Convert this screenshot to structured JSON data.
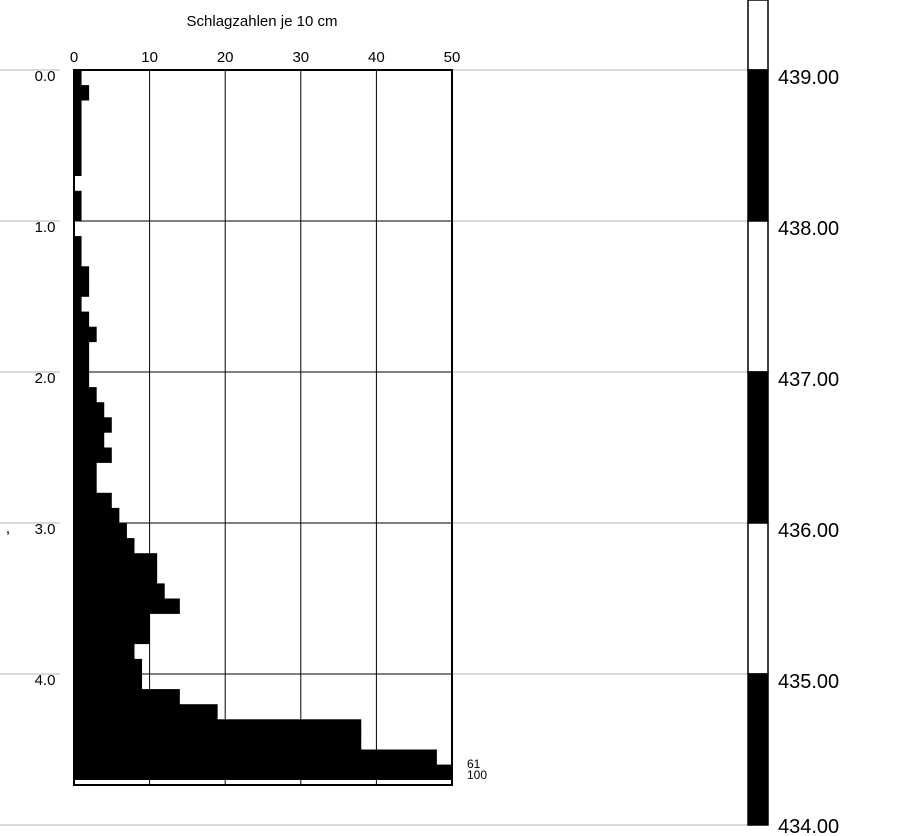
{
  "chart_data": {
    "type": "bar",
    "orientation": "horizontal",
    "title": "Schlagzahlen je 10 cm",
    "xlim": [
      0,
      50
    ],
    "x_ticks": [
      0,
      10,
      20,
      30,
      40,
      50
    ],
    "ylim": [
      0.0,
      4.7
    ],
    "y_ticks": [
      "0.0",
      "1.0",
      "2.0",
      "3.0",
      "4.0"
    ],
    "grid": true,
    "bin_size": 0.1,
    "depth_start": [
      0.0,
      0.1,
      0.2,
      0.3,
      0.4,
      0.5,
      0.6,
      0.7,
      0.8,
      0.9,
      1.0,
      1.1,
      1.2,
      1.3,
      1.4,
      1.5,
      1.6,
      1.7,
      1.8,
      1.9,
      2.0,
      2.1,
      2.2,
      2.3,
      2.4,
      2.5,
      2.6,
      2.7,
      2.8,
      2.9,
      3.0,
      3.1,
      3.2,
      3.3,
      3.4,
      3.5,
      3.6,
      3.7,
      3.8,
      3.9,
      4.0,
      4.1,
      4.2,
      4.3,
      4.4,
      4.5,
      4.6
    ],
    "values": [
      1,
      2,
      1,
      1,
      1,
      1,
      1,
      0,
      1,
      1,
      0,
      1,
      1,
      2,
      2,
      1,
      2,
      3,
      2,
      2,
      2,
      3,
      4,
      5,
      4,
      5,
      3,
      3,
      5,
      6,
      7,
      8,
      11,
      11,
      12,
      14,
      10,
      10,
      8,
      9,
      9,
      14,
      19,
      38,
      38,
      48,
      50
    ],
    "overflow_labels": [
      "61",
      "100"
    ],
    "elevation_scale": {
      "labels": [
        "439.00",
        "438.00",
        "437.00",
        "436.00",
        "435.00",
        "434.00"
      ],
      "segments": [
        "white",
        "black",
        "white",
        "black",
        "white",
        "black"
      ]
    },
    "edge_mark": ","
  }
}
